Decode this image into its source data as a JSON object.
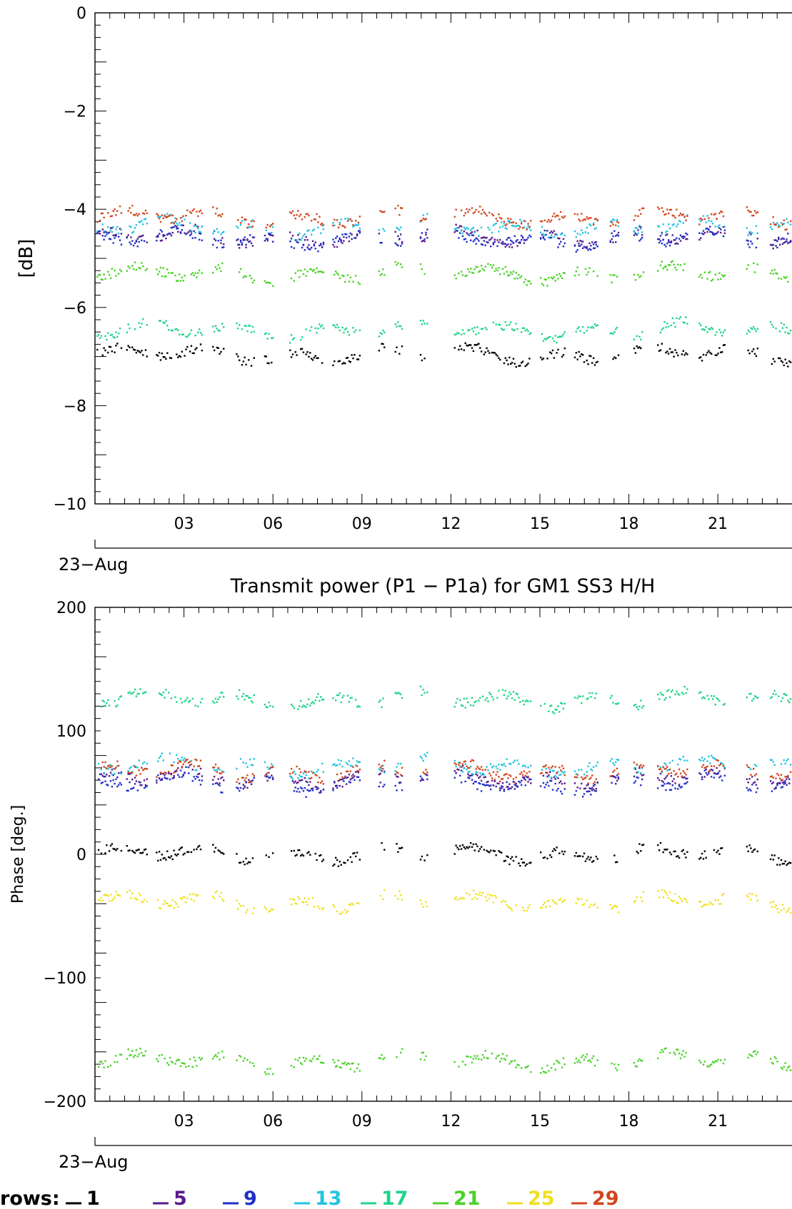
{
  "chart_data": [
    {
      "type": "scatter",
      "title": "",
      "ylabel": "[dB]",
      "xlabel": "",
      "x_date_label": "23−Aug",
      "xlim": [
        0,
        23.5
      ],
      "ylim": [
        -10,
        0
      ],
      "x_ticks": [
        3,
        6,
        9,
        12,
        15,
        18,
        21
      ],
      "x_tick_labels": [
        "03",
        "06",
        "09",
        "12",
        "15",
        "18",
        "21"
      ],
      "y_ticks": [
        0,
        -2,
        -4,
        -6,
        -8,
        -10
      ],
      "y_tick_labels": [
        "0",
        "−2",
        "−4",
        "−6",
        "−8",
        "−10"
      ],
      "series": [
        {
          "name": "1",
          "color": "#000000",
          "base": -6.95
        },
        {
          "name": "5",
          "color": "#5a1a8c",
          "base": -4.55
        },
        {
          "name": "9",
          "color": "#1f2fc8",
          "base": -4.6
        },
        {
          "name": "13",
          "color": "#22c4e0",
          "base": -4.35
        },
        {
          "name": "17",
          "color": "#20d48a",
          "base": -6.45
        },
        {
          "name": "21",
          "color": "#4cd12a",
          "base": -5.3
        },
        {
          "name": "29",
          "color": "#d2461e",
          "base": -4.15
        }
      ]
    },
    {
      "type": "scatter",
      "title": "Transmit power (P1 − P1a) for GM1 SS3 H/H",
      "ylabel": "Phase [deg.]",
      "xlabel": "",
      "x_date_label": "23−Aug",
      "xlim": [
        0,
        23.5
      ],
      "ylim": [
        -200,
        200
      ],
      "x_ticks": [
        3,
        6,
        9,
        12,
        15,
        18,
        21
      ],
      "x_tick_labels": [
        "03",
        "06",
        "09",
        "12",
        "15",
        "18",
        "21"
      ],
      "y_ticks": [
        200,
        100,
        0,
        -100,
        -200
      ],
      "y_tick_labels": [
        "200",
        "100",
        "0",
        "−100",
        "−200"
      ],
      "series": [
        {
          "name": "1",
          "color": "#000000",
          "base": 1
        },
        {
          "name": "5",
          "color": "#5a1a8c",
          "base": 62
        },
        {
          "name": "9",
          "color": "#1f2fc8",
          "base": 58
        },
        {
          "name": "13",
          "color": "#22c4e0",
          "base": 72
        },
        {
          "name": "17",
          "color": "#20d48a",
          "base": 126
        },
        {
          "name": "21",
          "color": "#4cd12a",
          "base": -167
        },
        {
          "name": "25",
          "color": "#f0e020",
          "base": -38
        },
        {
          "name": "29",
          "color": "#d2461e",
          "base": 68
        }
      ]
    }
  ],
  "legend": {
    "label": "rows:",
    "items": [
      {
        "label": "1",
        "color": "#000000"
      },
      {
        "label": "5",
        "color": "#5a1a8c"
      },
      {
        "label": "9",
        "color": "#1f2fc8"
      },
      {
        "label": "13",
        "color": "#22c4e0"
      },
      {
        "label": "17",
        "color": "#20d48a"
      },
      {
        "label": "21",
        "color": "#4cd12a"
      },
      {
        "label": "25",
        "color": "#f0e020"
      },
      {
        "label": "29",
        "color": "#d2461e"
      }
    ]
  }
}
